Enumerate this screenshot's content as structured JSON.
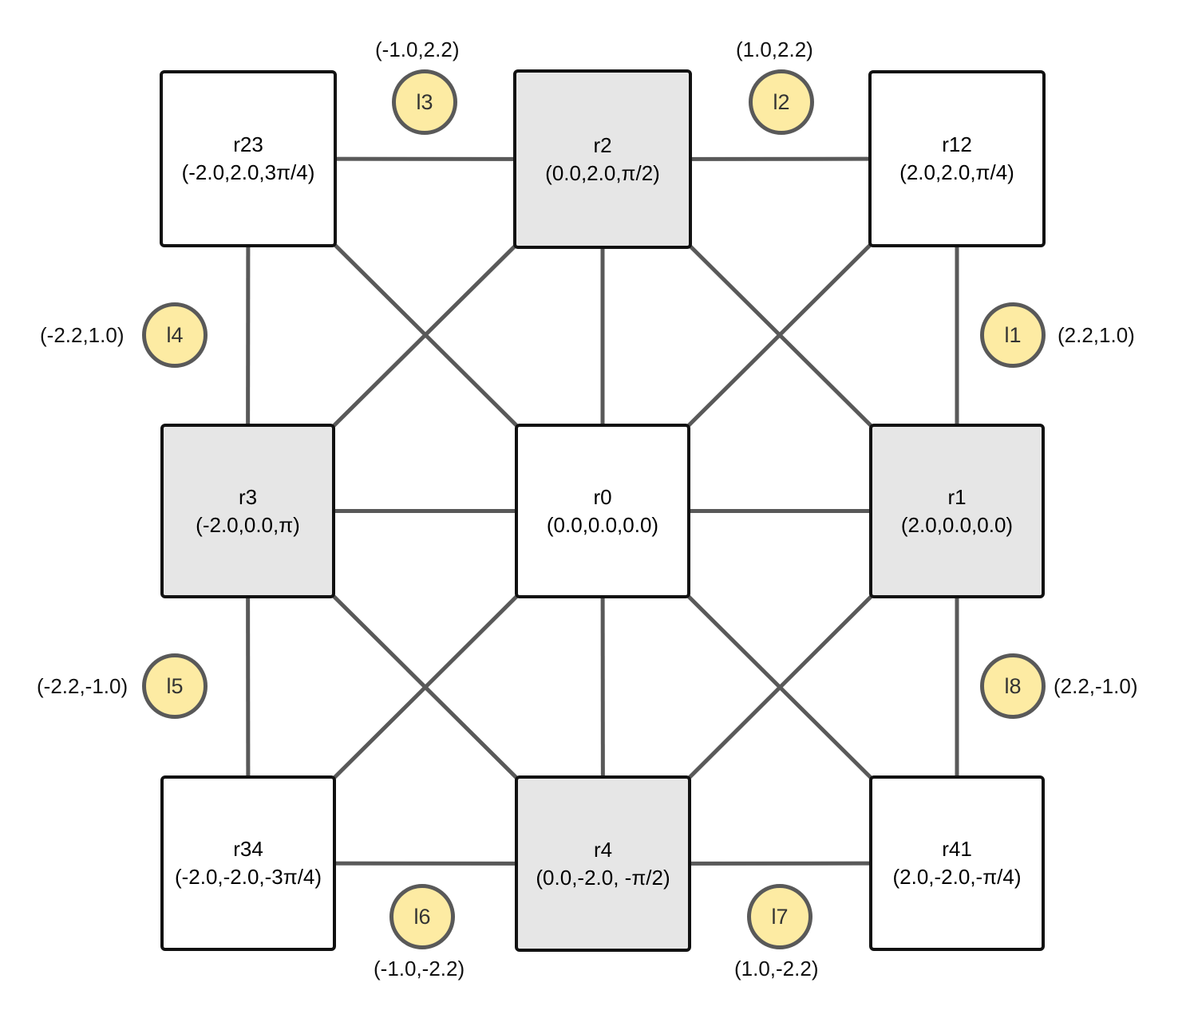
{
  "colors": {
    "edge": "#595959",
    "node_border": "#111111",
    "node_white": "#ffffff",
    "node_grey": "#e6e6e6",
    "landmark_fill": "#fdeba3",
    "landmark_border": "#595959"
  },
  "nodes": {
    "r23": {
      "name": "r23",
      "pose": "(-2.0,2.0,3π/4)"
    },
    "r2": {
      "name": "r2",
      "pose": "(0.0,2.0,π/2)"
    },
    "r12": {
      "name": "r12",
      "pose": "(2.0,2.0,π/4)"
    },
    "r3": {
      "name": "r3",
      "pose": "(-2.0,0.0,π)"
    },
    "r0": {
      "name": "r0",
      "pose": "(0.0,0.0,0.0)"
    },
    "r1": {
      "name": "r1",
      "pose": "(2.0,0.0,0.0)"
    },
    "r34": {
      "name": "r34",
      "pose": "(-2.0,-2.0,-3π/4)"
    },
    "r4": {
      "name": "r4",
      "pose": "(0.0,-2.0, -π/2)"
    },
    "r41": {
      "name": "r41",
      "pose": "(2.0,-2.0,-π/4)"
    }
  },
  "landmarks": {
    "l1": {
      "name": "l1",
      "coord": "(2.2,1.0)"
    },
    "l2": {
      "name": "l2",
      "coord": "(1.0,2.2)"
    },
    "l3": {
      "name": "l3",
      "coord": "(-1.0,2.2)"
    },
    "l4": {
      "name": "l4",
      "coord": "(-2.2,1.0)"
    },
    "l5": {
      "name": "l5",
      "coord": "(-2.2,-1.0)"
    },
    "l6": {
      "name": "l6",
      "coord": "(-1.0,-2.2)"
    },
    "l7": {
      "name": "l7",
      "coord": "(1.0,-2.2)"
    },
    "l8": {
      "name": "l8",
      "coord": "(2.2,-1.0)"
    }
  },
  "edges": [
    [
      "r23",
      "r2"
    ],
    [
      "r2",
      "r12"
    ],
    [
      "r3",
      "r0"
    ],
    [
      "r0",
      "r1"
    ],
    [
      "r34",
      "r4"
    ],
    [
      "r4",
      "r41"
    ],
    [
      "r23",
      "r3"
    ],
    [
      "r3",
      "r34"
    ],
    [
      "r2",
      "r0"
    ],
    [
      "r0",
      "r4"
    ],
    [
      "r12",
      "r1"
    ],
    [
      "r1",
      "r41"
    ],
    [
      "r23",
      "r0"
    ],
    [
      "r0",
      "r41"
    ],
    [
      "r2",
      "r3"
    ],
    [
      "r2",
      "r1"
    ],
    [
      "r12",
      "r0"
    ],
    [
      "r0",
      "r34"
    ],
    [
      "r3",
      "r4"
    ],
    [
      "r1",
      "r4"
    ]
  ]
}
